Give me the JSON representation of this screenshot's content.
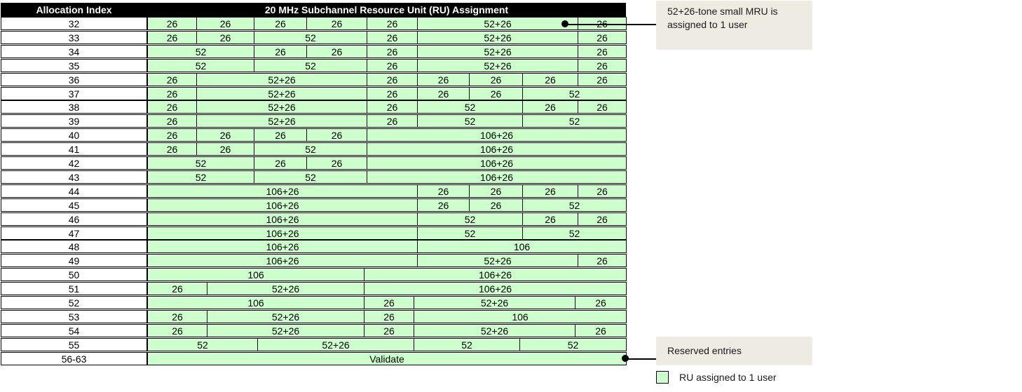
{
  "header": {
    "index_label": "Allocation Index",
    "assignment_label": "20 MHz Subchannel Resource Unit (RU) Assignment"
  },
  "rows": [
    {
      "index": "32",
      "cells": [
        [
          "26",
          1
        ],
        [
          "26",
          1
        ],
        [
          "26",
          1
        ],
        [
          "26",
          1
        ],
        [
          "26",
          1
        ],
        [
          "52+26",
          3
        ],
        [
          "26",
          1
        ]
      ]
    },
    {
      "index": "33",
      "cells": [
        [
          "26",
          1
        ],
        [
          "26",
          1
        ],
        [
          "52",
          2
        ],
        [
          "26",
          1
        ],
        [
          "52+26",
          3
        ],
        [
          "26",
          1
        ]
      ]
    },
    {
      "index": "34",
      "cells": [
        [
          "52",
          2
        ],
        [
          "26",
          1
        ],
        [
          "26",
          1
        ],
        [
          "26",
          1
        ],
        [
          "52+26",
          3
        ],
        [
          "26",
          1
        ]
      ]
    },
    {
      "index": "35",
      "cells": [
        [
          "52",
          2
        ],
        [
          "52",
          2
        ],
        [
          "26",
          1
        ],
        [
          "52+26",
          3
        ],
        [
          "26",
          1
        ]
      ]
    },
    {
      "index": "36",
      "cells": [
        [
          "26",
          1
        ],
        [
          "52+26",
          3
        ],
        [
          "26",
          1
        ],
        [
          "26",
          1
        ],
        [
          "26",
          1
        ],
        [
          "26",
          1
        ],
        [
          "26",
          1
        ]
      ]
    },
    {
      "index": "37",
      "cells": [
        [
          "26",
          1
        ],
        [
          "52+26",
          3
        ],
        [
          "26",
          1
        ],
        [
          "26",
          1
        ],
        [
          "26",
          1
        ],
        [
          "52",
          2
        ]
      ]
    },
    {
      "index": "38",
      "cells": [
        [
          "26",
          1
        ],
        [
          "52+26",
          3
        ],
        [
          "26",
          1
        ],
        [
          "52",
          2
        ],
        [
          "26",
          1
        ],
        [
          "26",
          1
        ]
      ]
    },
    {
      "index": "39",
      "cells": [
        [
          "26",
          1
        ],
        [
          "52+26",
          3
        ],
        [
          "26",
          1
        ],
        [
          "52",
          2
        ],
        [
          "52",
          2
        ]
      ]
    },
    {
      "index": "40",
      "cells": [
        [
          "26",
          1
        ],
        [
          "26",
          1
        ],
        [
          "26",
          1
        ],
        [
          "26",
          1
        ],
        [
          "106+26",
          5
        ]
      ]
    },
    {
      "index": "41",
      "cells": [
        [
          "26",
          1
        ],
        [
          "26",
          1
        ],
        [
          "52",
          2
        ],
        [
          "106+26",
          5
        ]
      ]
    },
    {
      "index": "42",
      "cells": [
        [
          "52",
          2
        ],
        [
          "26",
          1
        ],
        [
          "26",
          1
        ],
        [
          "106+26",
          5
        ]
      ]
    },
    {
      "index": "43",
      "cells": [
        [
          "52",
          2
        ],
        [
          "52",
          2
        ],
        [
          "106+26",
          5
        ]
      ]
    },
    {
      "index": "44",
      "cells": [
        [
          "106+26",
          5
        ],
        [
          "26",
          1
        ],
        [
          "26",
          1
        ],
        [
          "26",
          1
        ],
        [
          "26",
          1
        ]
      ]
    },
    {
      "index": "45",
      "cells": [
        [
          "106+26",
          5
        ],
        [
          "26",
          1
        ],
        [
          "26",
          1
        ],
        [
          "52",
          2
        ]
      ]
    },
    {
      "index": "46",
      "cells": [
        [
          "106+26",
          5
        ],
        [
          "52",
          2
        ],
        [
          "26",
          1
        ],
        [
          "26",
          1
        ]
      ]
    },
    {
      "index": "47",
      "cells": [
        [
          "106+26",
          5
        ],
        [
          "52",
          2
        ],
        [
          "52",
          2
        ]
      ]
    },
    {
      "index": "48",
      "cells": [
        [
          "106+26",
          5
        ],
        [
          "106",
          4
        ]
      ]
    },
    {
      "index": "49",
      "cells": [
        [
          "106+26",
          5
        ],
        [
          "52+26",
          3
        ],
        [
          "26",
          1
        ]
      ]
    },
    {
      "index": "50",
      "cells": [
        [
          "106",
          4
        ],
        [
          "106+26",
          5
        ]
      ]
    },
    {
      "index": "51",
      "cells": [
        [
          "26",
          1
        ],
        [
          "52+26",
          3
        ],
        [
          "106+26",
          5
        ]
      ]
    },
    {
      "index": "52",
      "cells": [
        [
          "106",
          4
        ],
        [
          "26",
          1
        ],
        [
          "52+26",
          3
        ],
        [
          "26",
          1
        ]
      ]
    },
    {
      "index": "53",
      "cells": [
        [
          "26",
          1
        ],
        [
          "52+26",
          3
        ],
        [
          "26",
          1
        ],
        [
          "106",
          4
        ]
      ]
    },
    {
      "index": "54",
      "cells": [
        [
          "26",
          1
        ],
        [
          "52+26",
          3
        ],
        [
          "26",
          1
        ],
        [
          "52+26",
          3
        ],
        [
          "26",
          1
        ]
      ]
    },
    {
      "index": "55",
      "cells": [
        [
          "52",
          2
        ],
        [
          "52+26",
          3
        ],
        [
          "52",
          2
        ],
        [
          "52",
          2
        ]
      ]
    },
    {
      "index": "56-63",
      "cells": [
        [
          "Validate",
          9
        ]
      ]
    }
  ],
  "annotations": {
    "mru_note": "52+26-tone small MRU is assigned to 1 user",
    "reserved_note": "Reserved entries"
  },
  "legend": {
    "label": "RU assigned to 1 user",
    "color": "#ccffcc"
  },
  "colors": {
    "ru_fill": "#ccffcc",
    "header_fill": "#000000",
    "note_fill": "#eeebe3"
  }
}
